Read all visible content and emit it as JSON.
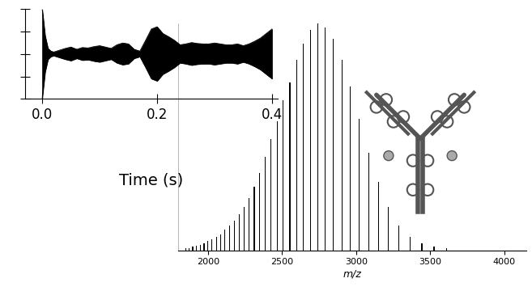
{
  "chart_data": [
    {
      "type": "area",
      "x_label": "Time (s)",
      "x": [
        0.0,
        0.005,
        0.01,
        0.015,
        0.02,
        0.03,
        0.04,
        0.05,
        0.06,
        0.07,
        0.08,
        0.09,
        0.1,
        0.11,
        0.12,
        0.13,
        0.14,
        0.15,
        0.16,
        0.17,
        0.18,
        0.19,
        0.2,
        0.21,
        0.22,
        0.23,
        0.24,
        0.25,
        0.26,
        0.27,
        0.28,
        0.29,
        0.3,
        0.31,
        0.32,
        0.33,
        0.34,
        0.35,
        0.36,
        0.37,
        0.38,
        0.39,
        0.4
      ],
      "values": [
        0.98,
        0.4,
        0.12,
        0.06,
        0.04,
        0.08,
        0.12,
        0.15,
        0.1,
        0.14,
        0.13,
        0.16,
        0.18,
        0.15,
        0.12,
        0.2,
        0.24,
        0.22,
        0.1,
        0.06,
        0.3,
        0.55,
        0.6,
        0.45,
        0.38,
        0.3,
        0.2,
        0.22,
        0.25,
        0.23,
        0.22,
        0.22,
        0.24,
        0.22,
        0.2,
        0.2,
        0.22,
        0.18,
        0.22,
        0.28,
        0.35,
        0.45,
        0.55
      ],
      "color": "#000000",
      "xlim": [
        -0.03,
        0.41
      ],
      "xticks": [
        {
          "value": 0,
          "label": "0.0"
        },
        {
          "value": 0.2,
          "label": "0.2"
        },
        {
          "value": 0.4,
          "label": "0.4"
        }
      ],
      "ylim": [
        -1,
        1
      ],
      "yticks": [
        -1,
        -0.5,
        0,
        0.5,
        1
      ],
      "tick_labels": "x"
    },
    {
      "type": "bar",
      "x_label": "m/z",
      "x": [
        1851,
        1874,
        1898,
        1923,
        1948,
        1974,
        2001,
        2028,
        2057,
        2085,
        2115,
        2146,
        2177,
        2210,
        2243,
        2278,
        2313,
        2350,
        2388,
        2427,
        2468,
        2509,
        2553,
        2598,
        2644,
        2692,
        2742,
        2793,
        2847,
        2903,
        2961,
        3021,
        3084,
        3150,
        3218,
        3290,
        3365,
        3443,
        3525,
        3611
      ],
      "values": [
        1,
        1,
        1.5,
        2,
        2.5,
        3,
        4,
        5,
        6,
        7,
        9,
        11,
        13,
        16,
        19,
        23,
        28,
        34,
        41,
        49,
        57,
        66,
        74,
        84,
        91,
        97,
        100,
        98,
        93,
        84,
        72,
        58,
        43,
        30,
        19,
        11,
        6,
        3,
        1.5,
        1
      ],
      "color": "#000000",
      "xlim": [
        1800,
        4150
      ],
      "xticks": [
        2000,
        2500,
        3000,
        3500,
        4000
      ],
      "ylim": [
        0,
        100
      ],
      "tick_labels": "x"
    }
  ]
}
